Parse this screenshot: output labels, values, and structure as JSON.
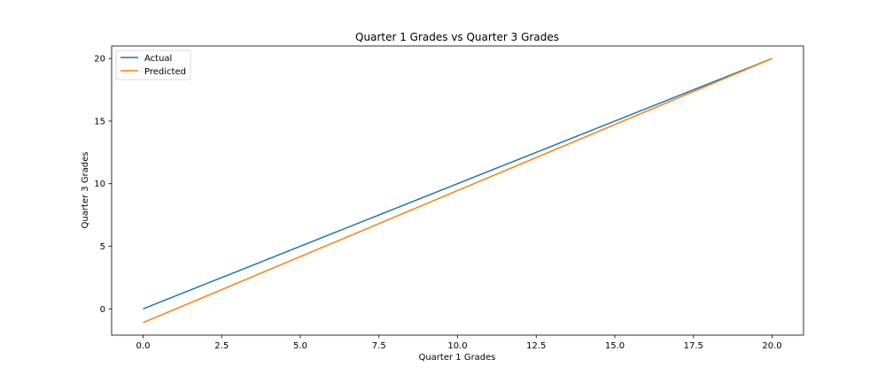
{
  "chart_data": {
    "type": "line",
    "title": "Quarter 1 Grades vs Quarter 3 Grades",
    "xlabel": "Quarter 1 Grades",
    "ylabel": "Quarter 3 Grades",
    "xlim": [
      -1.0,
      21.0
    ],
    "ylim": [
      -2.1,
      21.0
    ],
    "x_ticks": [
      0.0,
      2.5,
      5.0,
      7.5,
      10.0,
      12.5,
      15.0,
      17.5,
      20.0
    ],
    "x_tick_labels": [
      "0.0",
      "2.5",
      "5.0",
      "7.5",
      "10.0",
      "12.5",
      "15.0",
      "17.5",
      "20.0"
    ],
    "y_ticks": [
      0,
      5,
      10,
      15,
      20
    ],
    "y_tick_labels": [
      "0",
      "5",
      "10",
      "15",
      "20"
    ],
    "grid": false,
    "legend_position": "top-left",
    "series": [
      {
        "name": "Actual",
        "color": "#1f77b4",
        "x": [
          0,
          20
        ],
        "y": [
          0,
          20
        ]
      },
      {
        "name": "Predicted",
        "color": "#ff7f0e",
        "x": [
          0,
          20
        ],
        "y": [
          -1.1,
          20.0
        ]
      }
    ]
  }
}
